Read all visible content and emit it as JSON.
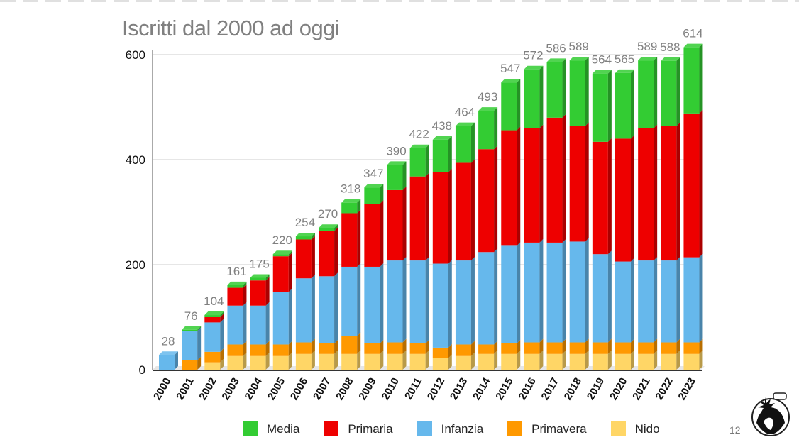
{
  "slide": {
    "title": "Iscritti dal 2000 ad oggi",
    "page_number": "12"
  },
  "chart_data": {
    "type": "bar",
    "stacked": true,
    "title": "Iscritti dal 2000 ad oggi",
    "xlabel": "",
    "ylabel": "",
    "ylim": [
      0,
      620
    ],
    "y_ticks": [
      0,
      200,
      400,
      600
    ],
    "grid": true,
    "legend_position": "bottom",
    "categories": [
      "2000",
      "2001",
      "2002",
      "2003",
      "2004",
      "2005",
      "2006",
      "2007",
      "2008",
      "2009",
      "2010",
      "2011",
      "2012",
      "2013",
      "2014",
      "2015",
      "2016",
      "2017",
      "2018",
      "2019",
      "2020",
      "2021",
      "2022",
      "2023"
    ],
    "totals": [
      28,
      76,
      104,
      161,
      175,
      220,
      254,
      270,
      318,
      347,
      390,
      422,
      438,
      464,
      493,
      547,
      572,
      586,
      589,
      564,
      565,
      589,
      588,
      614
    ],
    "series": [
      {
        "name": "Nido",
        "color": "#ffd666",
        "values": [
          0,
          0,
          14,
          26,
          26,
          26,
          30,
          30,
          30,
          30,
          30,
          30,
          22,
          26,
          30,
          30,
          30,
          30,
          30,
          30,
          30,
          30,
          30,
          30
        ]
      },
      {
        "name": "Primavera",
        "color": "#ff9900",
        "values": [
          0,
          18,
          20,
          22,
          22,
          22,
          22,
          20,
          34,
          20,
          22,
          20,
          20,
          22,
          18,
          20,
          22,
          22,
          22,
          22,
          22,
          22,
          22,
          22
        ]
      },
      {
        "name": "Infanzia",
        "color": "#66b8ec",
        "values": [
          28,
          56,
          56,
          74,
          74,
          100,
          122,
          128,
          132,
          146,
          156,
          158,
          160,
          160,
          176,
          186,
          190,
          190,
          192,
          168,
          154,
          156,
          156,
          162
        ]
      },
      {
        "name": "Primaria",
        "color": "#ee0000",
        "values": [
          0,
          0,
          10,
          34,
          48,
          68,
          74,
          86,
          102,
          120,
          134,
          160,
          174,
          186,
          196,
          220,
          218,
          238,
          220,
          214,
          234,
          252,
          256,
          274
        ]
      },
      {
        "name": "Media",
        "color": "#33cc33",
        "values": [
          0,
          2,
          4,
          5,
          5,
          4,
          6,
          6,
          20,
          31,
          48,
          54,
          62,
          70,
          73,
          91,
          112,
          106,
          125,
          130,
          125,
          129,
          124,
          126
        ]
      }
    ]
  }
}
